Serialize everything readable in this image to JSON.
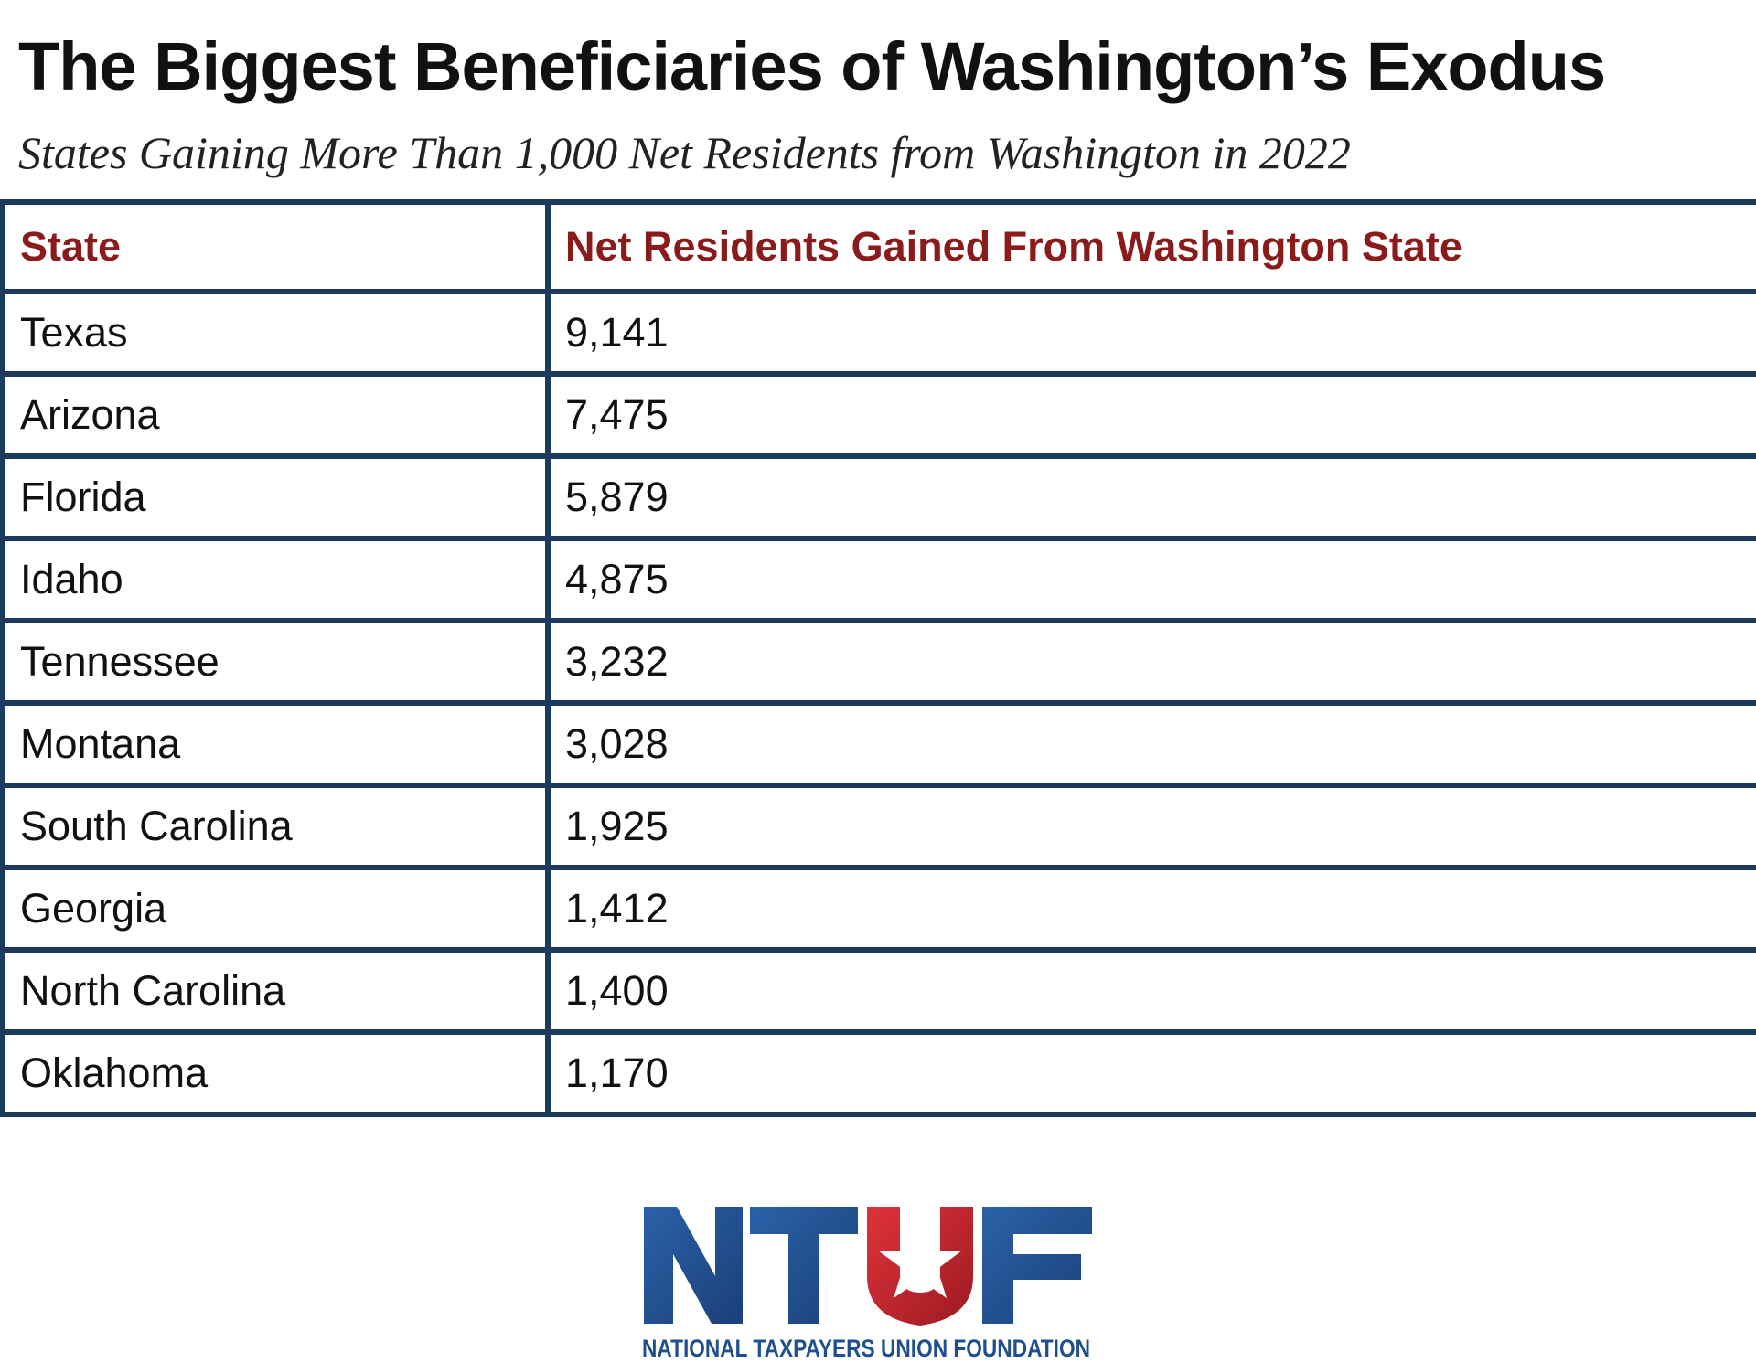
{
  "title": "The Biggest Beneficiaries of Washington’s Exodus",
  "subtitle": "States Gaining More Than 1,000 Net Residents from Washington in 2022",
  "chart_data": {
    "type": "table",
    "title": "The Biggest Beneficiaries of Washington’s Exodus",
    "subtitle": "States Gaining More Than 1,000 Net Residents from Washington in 2022",
    "columns": [
      "State",
      "Net Residents Gained From Washington State"
    ],
    "rows": [
      [
        "Texas",
        "9,141"
      ],
      [
        "Arizona",
        "7,475"
      ],
      [
        "Florida",
        "5,879"
      ],
      [
        "Idaho",
        "4,875"
      ],
      [
        "Tennessee",
        "3,232"
      ],
      [
        "Montana",
        "3,028"
      ],
      [
        "South Carolina",
        "1,925"
      ],
      [
        "Georgia",
        "1,412"
      ],
      [
        "North Carolina",
        "1,400"
      ],
      [
        "Oklahoma",
        "1,170"
      ]
    ]
  },
  "logo": {
    "text": "NTUF",
    "tagline": "NATIONAL TAXPAYERS UNION FOUNDATION"
  },
  "colors": {
    "border": "#1b3a5e",
    "header_text": "#8b1a1a",
    "logo_blue": "#1f4f8f",
    "logo_red": "#c8232c"
  }
}
